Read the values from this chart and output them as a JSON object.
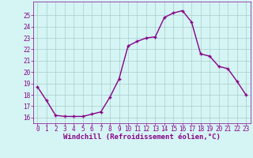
{
  "x": [
    0,
    1,
    2,
    3,
    4,
    5,
    6,
    7,
    8,
    9,
    10,
    11,
    12,
    13,
    14,
    15,
    16,
    17,
    18,
    19,
    20,
    21,
    22,
    23
  ],
  "y": [
    18.7,
    17.5,
    16.2,
    16.1,
    16.1,
    16.1,
    16.3,
    16.5,
    17.8,
    19.4,
    22.3,
    22.7,
    23.0,
    23.1,
    24.8,
    25.2,
    25.4,
    24.4,
    21.6,
    21.4,
    20.5,
    20.3,
    19.2,
    18.0
  ],
  "line_color": "#880088",
  "marker": "+",
  "marker_color": "#880088",
  "marker_size": 3,
  "background_color": "#d5f5f5",
  "grid_color": "#aacccc",
  "xlabel": "Windchill (Refroidissement éolien,°C)",
  "ylabel": "",
  "xlim": [
    -0.5,
    23.5
  ],
  "ylim": [
    15.5,
    26.2
  ],
  "yticks": [
    16,
    17,
    18,
    19,
    20,
    21,
    22,
    23,
    24,
    25
  ],
  "xticks": [
    0,
    1,
    2,
    3,
    4,
    5,
    6,
    7,
    8,
    9,
    10,
    11,
    12,
    13,
    14,
    15,
    16,
    17,
    18,
    19,
    20,
    21,
    22,
    23
  ],
  "xlabel_fontsize": 6.5,
  "tick_fontsize": 5.5,
  "line_width": 1.0,
  "fig_width": 3.2,
  "fig_height": 2.0,
  "dpi": 100
}
